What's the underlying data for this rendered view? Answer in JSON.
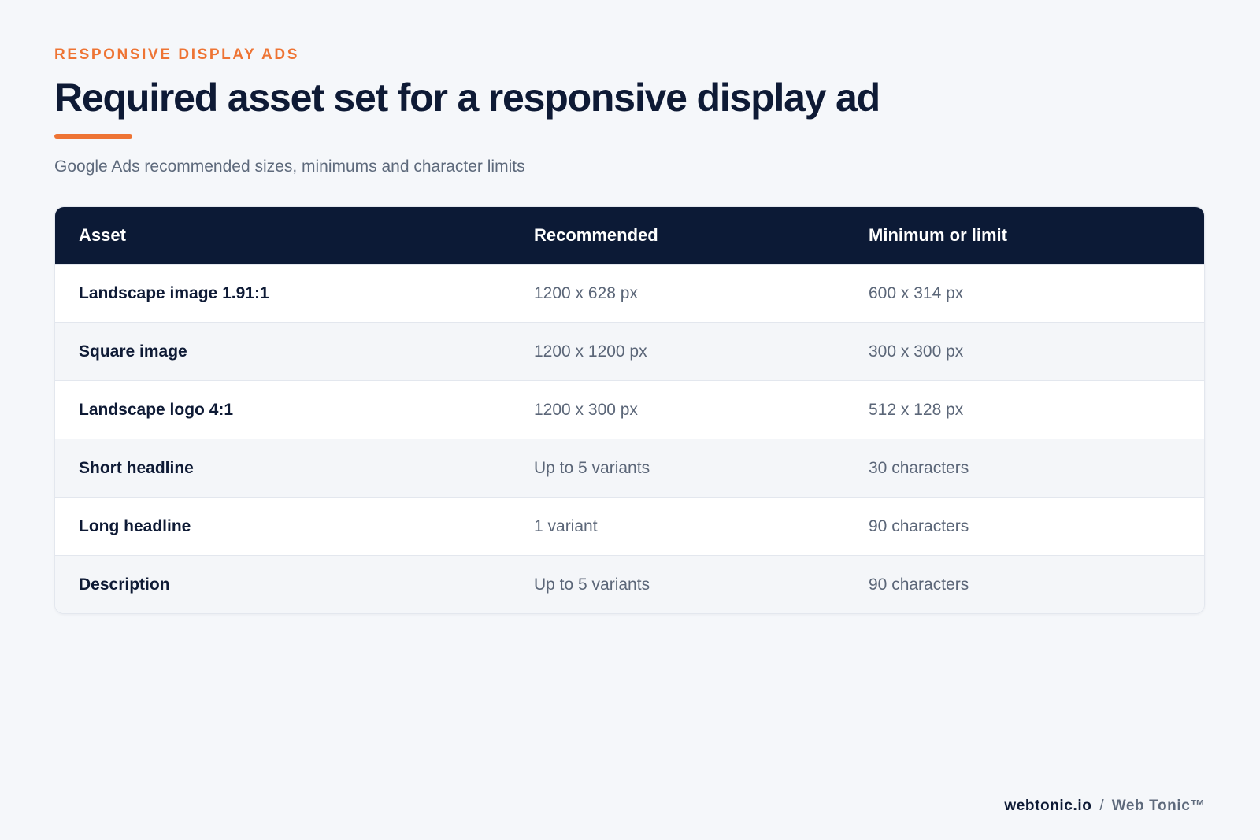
{
  "header": {
    "eyebrow": "RESPONSIVE DISPLAY ADS",
    "title": "Required asset set for a responsive display ad",
    "subtitle": "Google Ads recommended sizes, minimums and character limits"
  },
  "table": {
    "columns": [
      "Asset",
      "Recommended",
      "Minimum or limit"
    ],
    "rows": [
      [
        "Landscape image 1.91:1",
        "1200 x 628 px",
        "600 x 314 px"
      ],
      [
        "Square image",
        "1200 x 1200 px",
        "300 x 300 px"
      ],
      [
        "Landscape logo 4:1",
        "1200 x 300 px",
        "512 x 128 px"
      ],
      [
        "Short headline",
        "Up to 5 variants",
        "30 characters"
      ],
      [
        "Long headline",
        "1 variant",
        "90 characters"
      ],
      [
        "Description",
        "Up to 5 variants",
        "90 characters"
      ]
    ]
  },
  "footer": {
    "site": "webtonic.io",
    "separator": "/",
    "brand": "Web Tonic™"
  },
  "colors": {
    "accent": "#ee7434",
    "navy": "#0c1a36",
    "background": "#f5f7fa",
    "muted_text": "#5b6678"
  }
}
